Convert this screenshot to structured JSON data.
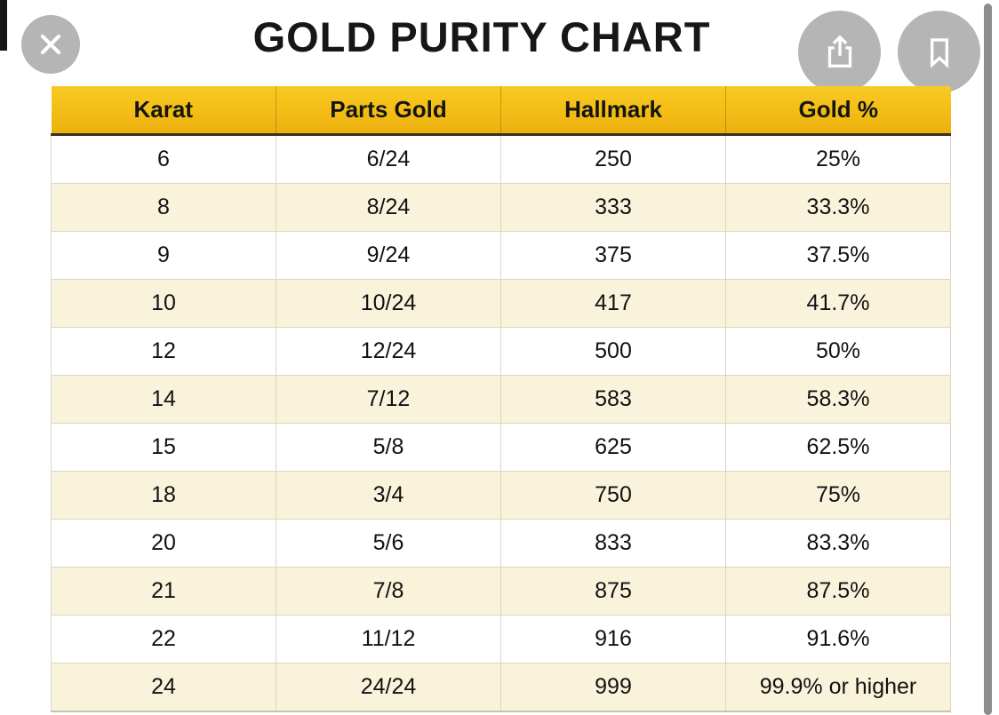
{
  "title": "GOLD PURITY CHART",
  "overlay": {
    "icons": {
      "close": "x-mark-icon",
      "share": "share-up-arrow-icon",
      "bookmark": "bookmark-icon"
    }
  },
  "table": {
    "headers": [
      "Karat",
      "Parts Gold",
      "Hallmark",
      "Gold %"
    ],
    "rows": [
      [
        "6",
        "6/24",
        "250",
        "25%"
      ],
      [
        "8",
        "8/24",
        "333",
        "33.3%"
      ],
      [
        "9",
        "9/24",
        "375",
        "37.5%"
      ],
      [
        "10",
        "10/24",
        "417",
        "41.7%"
      ],
      [
        "12",
        "12/24",
        "500",
        "50%"
      ],
      [
        "14",
        "7/12",
        "583",
        "58.3%"
      ],
      [
        "15",
        "5/8",
        "625",
        "62.5%"
      ],
      [
        "18",
        "3/4",
        "750",
        "75%"
      ],
      [
        "20",
        "5/6",
        "833",
        "83.3%"
      ],
      [
        "21",
        "7/8",
        "875",
        "87.5%"
      ],
      [
        "22",
        "11/12",
        "916",
        "91.6%"
      ],
      [
        "24",
        "24/24",
        "999",
        "99.9% or higher"
      ]
    ]
  },
  "chart_data": {
    "type": "table",
    "title": "GOLD PURITY CHART",
    "columns": [
      "Karat",
      "Parts Gold",
      "Hallmark",
      "Gold %"
    ],
    "rows": [
      [
        "6",
        "6/24",
        "250",
        "25%"
      ],
      [
        "8",
        "8/24",
        "333",
        "33.3%"
      ],
      [
        "9",
        "9/24",
        "375",
        "37.5%"
      ],
      [
        "10",
        "10/24",
        "417",
        "41.7%"
      ],
      [
        "12",
        "12/24",
        "500",
        "50%"
      ],
      [
        "14",
        "7/12",
        "583",
        "58.3%"
      ],
      [
        "15",
        "5/8",
        "625",
        "62.5%"
      ],
      [
        "18",
        "3/4",
        "750",
        "75%"
      ],
      [
        "20",
        "5/6",
        "833",
        "83.3%"
      ],
      [
        "21",
        "7/8",
        "875",
        "87.5%"
      ],
      [
        "22",
        "11/12",
        "916",
        "91.6%"
      ],
      [
        "24",
        "24/24",
        "999",
        "99.9% or higher"
      ]
    ]
  },
  "colors": {
    "header_yellow": "#F3BD15",
    "row_alt_cream": "#FAF3DC",
    "button_gray": "#B5B5B5",
    "scrollbar_gray": "#8D8D8D",
    "header_border": "#35321F"
  }
}
